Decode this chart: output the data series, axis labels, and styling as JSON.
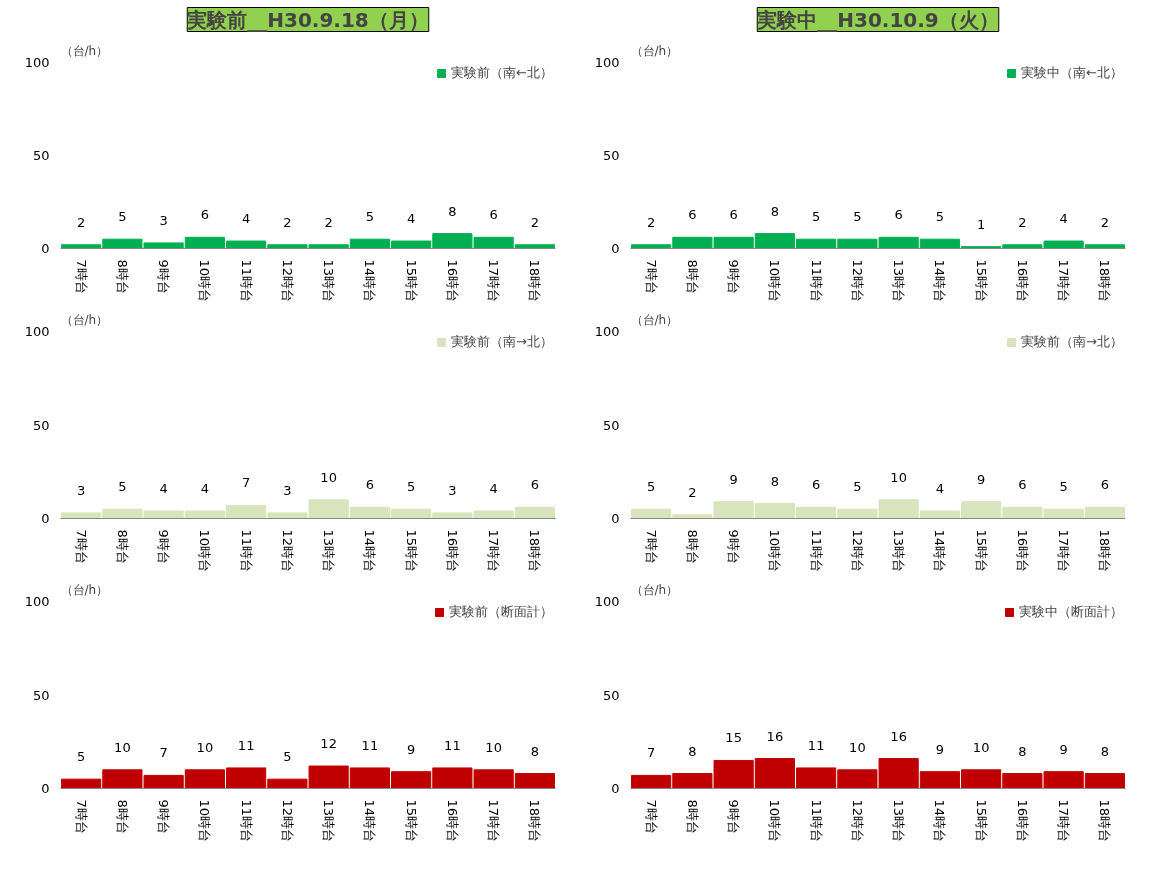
{
  "chart_data": [
    {
      "type": "bar",
      "title": "実験前__H30.9.18（月）",
      "ylabel": "（台/h）",
      "categories": [
        "7時台",
        "8時台",
        "9時台",
        "10時台",
        "11時台",
        "12時台",
        "13時台",
        "14時台",
        "15時台",
        "16時台",
        "17時台",
        "18時台"
      ],
      "series": [
        {
          "name": "実験前（南←北）",
          "color": "#00b050",
          "values": [
            2,
            5,
            3,
            6,
            4,
            2,
            2,
            5,
            4,
            8,
            6,
            2
          ]
        }
      ],
      "ylim": [
        0,
        100
      ],
      "yticks": [
        0,
        50,
        100
      ],
      "data_labels": true,
      "legend": "top right",
      "grid": false
    },
    {
      "type": "bar",
      "title": "実験中__H30.10.9（火）",
      "ylabel": "（台/h）",
      "categories": [
        "7時台",
        "8時台",
        "9時台",
        "10時台",
        "11時台",
        "12時台",
        "13時台",
        "14時台",
        "15時台",
        "16時台",
        "17時台",
        "18時台"
      ],
      "series": [
        {
          "name": "実験中（南←北）",
          "color": "#00b050",
          "values": [
            2,
            6,
            6,
            8,
            5,
            5,
            6,
            5,
            1,
            2,
            4,
            2
          ]
        }
      ],
      "ylim": [
        0,
        100
      ],
      "yticks": [
        0,
        50,
        100
      ],
      "data_labels": true,
      "legend": "top right",
      "grid": false
    },
    {
      "type": "bar",
      "ylabel": "（台/h）",
      "categories": [
        "7時台",
        "8時台",
        "9時台",
        "10時台",
        "11時台",
        "12時台",
        "13時台",
        "14時台",
        "15時台",
        "16時台",
        "17時台",
        "18時台"
      ],
      "series": [
        {
          "name": "実験前（南→北）",
          "color": "#d8e4bc",
          "values": [
            3,
            5,
            4,
            4,
            7,
            3,
            10,
            6,
            5,
            3,
            4,
            6
          ]
        }
      ],
      "ylim": [
        0,
        100
      ],
      "yticks": [
        0,
        50,
        100
      ],
      "data_labels": true,
      "legend": "top right",
      "grid": false
    },
    {
      "type": "bar",
      "ylabel": "（台/h）",
      "categories": [
        "7時台",
        "8時台",
        "9時台",
        "10時台",
        "11時台",
        "12時台",
        "13時台",
        "14時台",
        "15時台",
        "16時台",
        "17時台",
        "18時台"
      ],
      "series": [
        {
          "name": "実験前（南→北）",
          "color": "#d8e4bc",
          "values": [
            5,
            2,
            9,
            8,
            6,
            5,
            10,
            4,
            9,
            6,
            5,
            6
          ]
        }
      ],
      "ylim": [
        0,
        100
      ],
      "yticks": [
        0,
        50,
        100
      ],
      "data_labels": true,
      "legend": "top right",
      "grid": false
    },
    {
      "type": "bar",
      "ylabel": "（台/h）",
      "categories": [
        "7時台",
        "8時台",
        "9時台",
        "10時台",
        "11時台",
        "12時台",
        "13時台",
        "14時台",
        "15時台",
        "16時台",
        "17時台",
        "18時台"
      ],
      "series": [
        {
          "name": "実験前（断面計）",
          "color": "#c00000",
          "values": [
            5,
            10,
            7,
            10,
            11,
            5,
            12,
            11,
            9,
            11,
            10,
            8
          ]
        }
      ],
      "ylim": [
        0,
        100
      ],
      "yticks": [
        0,
        50,
        100
      ],
      "data_labels": true,
      "legend": "top right",
      "grid": false
    },
    {
      "type": "bar",
      "ylabel": "（台/h）",
      "categories": [
        "7時台",
        "8時台",
        "9時台",
        "10時台",
        "11時台",
        "12時台",
        "13時台",
        "14時台",
        "15時台",
        "16時台",
        "17時台",
        "18時台"
      ],
      "series": [
        {
          "name": "実験中（断面計）",
          "color": "#c00000",
          "values": [
            7,
            8,
            15,
            16,
            11,
            10,
            16,
            9,
            10,
            8,
            9,
            8
          ]
        }
      ],
      "ylim": [
        0,
        100
      ],
      "yticks": [
        0,
        50,
        100
      ],
      "data_labels": true,
      "legend": "top right",
      "grid": false
    }
  ]
}
